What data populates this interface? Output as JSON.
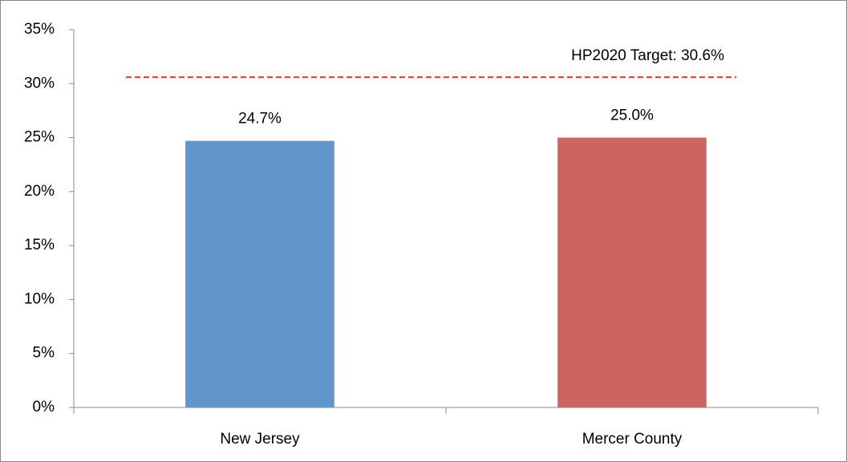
{
  "chart_data": {
    "type": "bar",
    "categories": [
      "New Jersey",
      "Mercer County"
    ],
    "values": [
      24.7,
      25.0
    ],
    "value_labels": [
      "24.7%",
      "25.0%"
    ],
    "colors": [
      "#6096c9",
      "#cc6560"
    ],
    "ylim": [
      0,
      35
    ],
    "yticks": [
      {
        "value": 0,
        "label": "0%"
      },
      {
        "value": 5,
        "label": "5%"
      },
      {
        "value": 10,
        "label": "10%"
      },
      {
        "value": 15,
        "label": "15%"
      },
      {
        "value": 20,
        "label": "20%"
      },
      {
        "value": 25,
        "label": "25%"
      },
      {
        "value": 30,
        "label": "30%"
      },
      {
        "value": 35,
        "label": "35%"
      }
    ],
    "target": {
      "value": 30.6,
      "label": "HP2020 Target: 30.6%",
      "color": "#e03030"
    },
    "grid": false
  }
}
